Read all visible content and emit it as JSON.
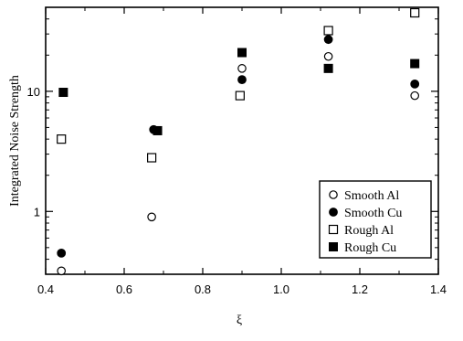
{
  "chart_data": {
    "type": "scatter",
    "xlabel": "ξ",
    "ylabel": "Integrated Noise Strength",
    "x_scale": "linear",
    "y_scale": "log",
    "xlim": [
      0.4,
      1.4
    ],
    "ylim": [
      0.3,
      50
    ],
    "x_ticks": [
      0.4,
      0.6,
      0.8,
      1.0,
      1.2,
      1.4
    ],
    "x_tick_labels": [
      "0.4",
      "0.6",
      "0.8",
      "1.0",
      "1.2",
      "1.4"
    ],
    "y_ticks": [
      1,
      10
    ],
    "y_tick_labels": [
      "1",
      "10"
    ],
    "grid": false,
    "legend_position": "bottom-right",
    "series": [
      {
        "name": "Smooth Al",
        "marker": "open-circle",
        "points": [
          {
            "x": 0.44,
            "y": 0.32
          },
          {
            "x": 0.67,
            "y": 0.9
          },
          {
            "x": 0.9,
            "y": 15.5
          },
          {
            "x": 1.12,
            "y": 19.5
          },
          {
            "x": 1.34,
            "y": 9.2
          }
        ]
      },
      {
        "name": "Smooth Cu",
        "marker": "filled-circle",
        "points": [
          {
            "x": 0.44,
            "y": 0.45
          },
          {
            "x": 0.675,
            "y": 4.8
          },
          {
            "x": 0.9,
            "y": 12.5
          },
          {
            "x": 1.12,
            "y": 27
          },
          {
            "x": 1.34,
            "y": 11.5
          }
        ]
      },
      {
        "name": "Rough Al",
        "marker": "open-square",
        "points": [
          {
            "x": 0.44,
            "y": 4.0
          },
          {
            "x": 0.67,
            "y": 2.8
          },
          {
            "x": 0.895,
            "y": 9.2
          },
          {
            "x": 1.12,
            "y": 32
          },
          {
            "x": 1.34,
            "y": 45
          }
        ]
      },
      {
        "name": "Rough Cu",
        "marker": "filled-square",
        "points": [
          {
            "x": 0.445,
            "y": 9.8
          },
          {
            "x": 0.685,
            "y": 4.7
          },
          {
            "x": 0.9,
            "y": 21
          },
          {
            "x": 1.12,
            "y": 15.5
          },
          {
            "x": 1.34,
            "y": 17
          }
        ]
      }
    ]
  }
}
